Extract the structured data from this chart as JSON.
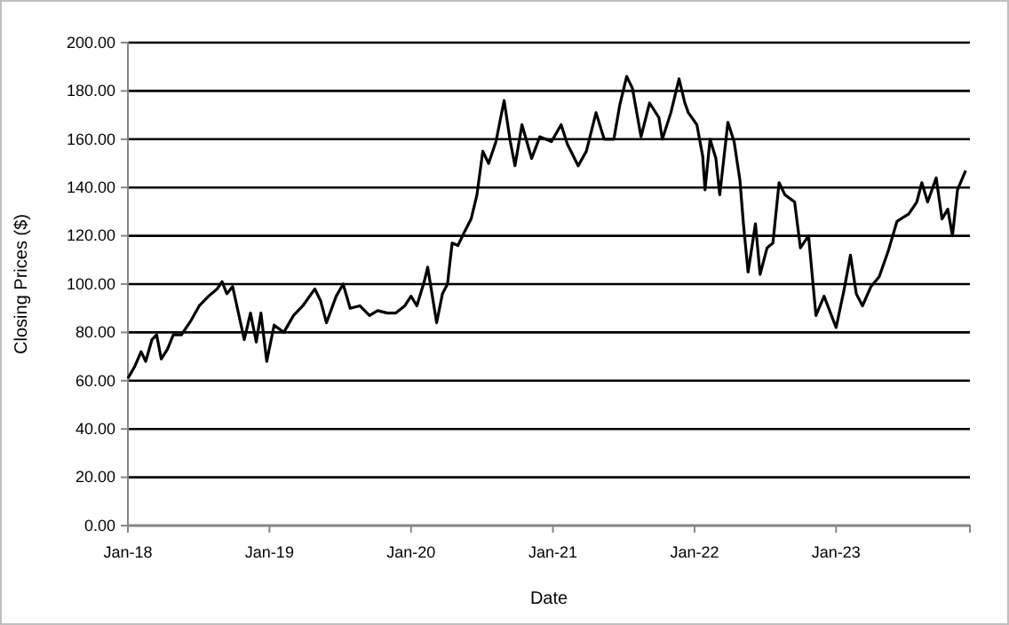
{
  "chart_data": {
    "type": "line",
    "xlabel": "Date",
    "ylabel": "Closing Prices ($)",
    "xlim": [
      "2018-01-01",
      "2023-12-12"
    ],
    "xticks": [
      {
        "value": "2018-01-01",
        "label": "Jan-18"
      },
      {
        "value": "2019-01-01",
        "label": "Jan-19"
      },
      {
        "value": "2020-01-01",
        "label": "Jan-20"
      },
      {
        "value": "2021-01-01",
        "label": "Jan-21"
      },
      {
        "value": "2022-01-01",
        "label": "Jan-22"
      },
      {
        "value": "2023-01-01",
        "label": "Jan-23"
      }
    ],
    "ylim": [
      0,
      200
    ],
    "yticks": [
      {
        "value": 0,
        "label": "0.00"
      },
      {
        "value": 20,
        "label": "20.00"
      },
      {
        "value": 40,
        "label": "40.00"
      },
      {
        "value": 60,
        "label": "60.00"
      },
      {
        "value": 80,
        "label": "80.00"
      },
      {
        "value": 100,
        "label": "100.00"
      },
      {
        "value": 120,
        "label": "120.00"
      },
      {
        "value": 140,
        "label": "140.00"
      },
      {
        "value": 160,
        "label": "160.00"
      },
      {
        "value": 180,
        "label": "180.00"
      },
      {
        "value": 200,
        "label": "200.00"
      }
    ],
    "grid": "y",
    "marker": "none",
    "line_style": "solid",
    "series": [
      {
        "color": "#000000",
        "x": [
          "2018-01-01",
          "2018-01-19",
          "2018-02-04",
          "2018-02-16",
          "2018-03-04",
          "2018-03-16",
          "2018-03-28",
          "2018-04-13",
          "2018-04-28",
          "2018-05-19",
          "2018-06-13",
          "2018-07-04",
          "2018-07-28",
          "2018-08-19",
          "2018-09-01",
          "2018-09-13",
          "2018-09-28",
          "2018-10-13",
          "2018-10-28",
          "2018-11-13",
          "2018-11-28",
          "2018-12-10",
          "2018-12-25",
          "2019-01-13",
          "2019-02-07",
          "2019-03-04",
          "2019-03-28",
          "2019-04-28",
          "2019-05-13",
          "2019-05-28",
          "2019-06-22",
          "2019-07-10",
          "2019-07-28",
          "2019-08-22",
          "2019-09-16",
          "2019-10-07",
          "2019-11-01",
          "2019-11-22",
          "2019-12-16",
          "2020-01-01",
          "2020-01-16",
          "2020-02-04",
          "2020-02-13",
          "2020-02-22",
          "2020-03-07",
          "2020-03-22",
          "2020-04-04",
          "2020-04-16",
          "2020-05-01",
          "2020-05-19",
          "2020-06-04",
          "2020-06-19",
          "2020-07-04",
          "2020-07-19",
          "2020-08-07",
          "2020-08-28",
          "2020-09-13",
          "2020-09-25",
          "2020-10-13",
          "2020-11-07",
          "2020-11-28",
          "2020-12-28",
          "2021-01-22",
          "2021-02-07",
          "2021-03-07",
          "2021-03-28",
          "2021-04-22",
          "2021-05-13",
          "2021-06-07",
          "2021-06-22",
          "2021-07-10",
          "2021-07-25",
          "2021-08-16",
          "2021-09-07",
          "2021-10-01",
          "2021-10-10",
          "2021-11-01",
          "2021-11-22",
          "2021-12-07",
          "2021-12-16",
          "2022-01-07",
          "2022-01-22",
          "2022-01-28",
          "2022-02-10",
          "2022-02-25",
          "2022-03-07",
          "2022-03-28",
          "2022-04-13",
          "2022-04-28",
          "2022-05-07",
          "2022-05-19",
          "2022-06-07",
          "2022-06-19",
          "2022-07-07",
          "2022-07-22",
          "2022-08-07",
          "2022-08-22",
          "2022-09-16",
          "2022-10-01",
          "2022-10-22",
          "2022-11-10",
          "2022-12-01",
          "2023-01-01",
          "2023-01-22",
          "2023-02-07",
          "2023-02-22",
          "2023-03-10",
          "2023-04-01",
          "2023-04-22",
          "2023-05-16",
          "2023-06-07",
          "2023-07-07",
          "2023-07-28",
          "2023-08-10",
          "2023-08-25",
          "2023-09-16",
          "2023-10-01",
          "2023-10-16",
          "2023-10-28",
          "2023-11-10",
          "2023-12-01"
        ],
        "values": [
          61,
          66,
          72,
          68,
          77,
          79,
          69,
          73,
          79,
          79,
          85,
          91,
          95,
          98,
          101,
          96,
          99,
          88,
          77,
          88,
          76,
          88,
          68,
          83,
          80,
          87,
          91,
          98,
          93,
          84,
          95,
          100,
          90,
          91,
          87,
          89,
          88,
          88,
          91,
          95,
          91,
          101,
          107,
          98,
          84,
          96,
          100,
          117,
          116,
          122,
          127,
          137,
          155,
          150,
          159,
          176,
          159,
          149,
          166,
          152,
          161,
          159,
          166,
          158,
          149,
          155,
          171,
          160,
          160,
          174,
          186,
          181,
          161,
          175,
          169,
          160,
          171,
          185,
          175,
          171,
          166,
          153,
          139,
          160,
          152,
          137,
          167,
          159,
          143,
          125,
          105,
          125,
          104,
          115,
          117,
          142,
          137,
          134,
          115,
          120,
          87,
          95,
          82,
          98,
          112,
          96,
          91,
          99,
          103,
          114,
          126,
          129,
          134,
          142,
          134,
          144,
          127,
          131,
          120,
          139,
          147
        ]
      }
    ]
  }
}
